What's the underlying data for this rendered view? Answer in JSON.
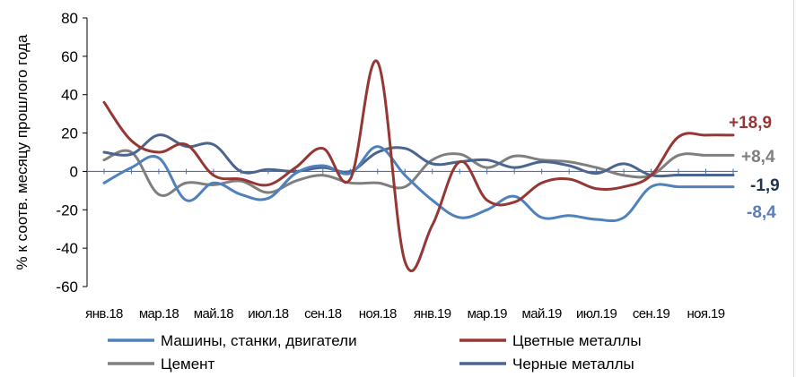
{
  "chart_data": {
    "type": "line",
    "title": "",
    "xlabel": "",
    "ylabel": "% к соотв. месяцу прошлого года",
    "ylim": [
      -60,
      80
    ],
    "y_ticks": [
      -60,
      -40,
      -20,
      0,
      20,
      40,
      60,
      80
    ],
    "grid": false,
    "legend_position": "bottom",
    "x_tick_labels": [
      "янв.18",
      "мар.18",
      "май.18",
      "июл.18",
      "сен.18",
      "ноя.18",
      "янв.19",
      "мар.19",
      "май.19",
      "июл.19",
      "сен.19",
      "ноя.19"
    ],
    "x_months": [
      "янв.18",
      "фев.18",
      "мар.18",
      "апр.18",
      "май.18",
      "июн.18",
      "июл.18",
      "авг.18",
      "сен.18",
      "окт.18",
      "ноя.18",
      "дек.18",
      "янв.19",
      "фев.19",
      "мар.19",
      "апр.19",
      "май.19",
      "июн.19",
      "июл.19",
      "авг.19",
      "сен.19",
      "окт.19",
      "ноя.19",
      "дек.19"
    ],
    "series": [
      {
        "name": "Машины, станки, двигатели",
        "color": "#4f81bd",
        "values": [
          -6,
          2,
          7,
          -15,
          -6,
          -12,
          -14,
          -1,
          3,
          -1,
          13,
          -2,
          -15,
          -24,
          -20,
          -13,
          -24,
          -23,
          -25,
          -24,
          -8,
          -8,
          -8,
          -8
        ],
        "end_label": "-8,4"
      },
      {
        "name": "Цветные металлы",
        "color": "#953735",
        "values": [
          36,
          16,
          10,
          14,
          -2,
          -4,
          -7,
          2,
          12,
          -4,
          57,
          -47,
          -28,
          5,
          -15,
          -16,
          -6,
          -4,
          -9,
          -8,
          -2,
          18,
          18.9,
          18.9
        ],
        "end_label": "+18,9"
      },
      {
        "name": "Цемент",
        "color": "#7f7f7f",
        "values": [
          6,
          10,
          -12,
          -6,
          -7,
          -5,
          -11,
          -5,
          -2,
          -6,
          -6,
          -8,
          6,
          9,
          2,
          8,
          6,
          5,
          2,
          -2,
          -2,
          8.4,
          8.4,
          8.4
        ],
        "end_label": "+8,4"
      },
      {
        "name": "Черные металлы",
        "color": "#4a6590",
        "values": [
          10,
          9,
          19,
          13,
          14,
          0,
          1,
          0,
          2,
          0,
          10,
          12,
          4,
          5,
          6,
          2,
          5,
          3,
          -1,
          4,
          -2,
          -1.9,
          -1.9,
          -1.9
        ],
        "end_label": "-1,9"
      }
    ],
    "end_label_colors": {
      "Машины, станки, двигатели": "#5b7db8",
      "Цветные металлы": "#953735",
      "Цемент": "#7f7f7f",
      "Черные металлы": "#1f3550"
    }
  }
}
